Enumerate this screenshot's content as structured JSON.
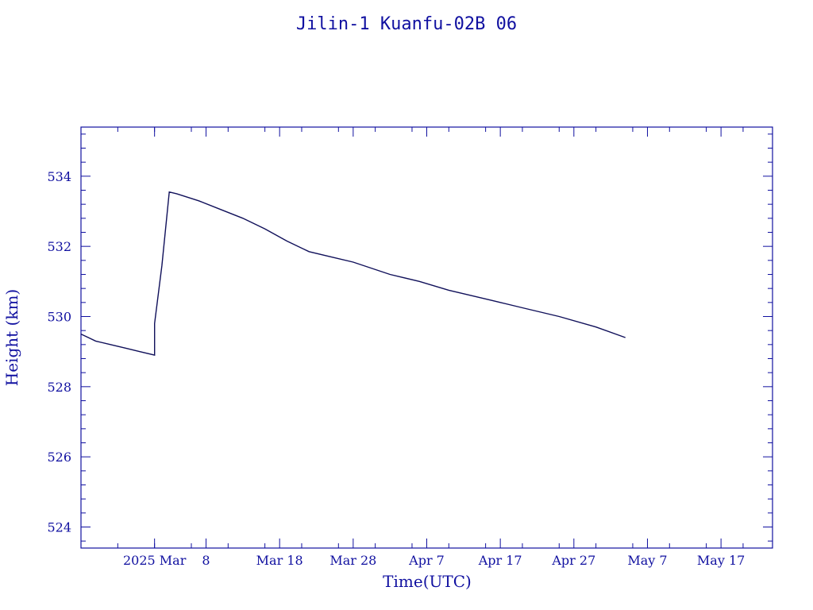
{
  "chart_data": {
    "type": "line",
    "title": "Jilin-1 Kuanfu-02B 06",
    "xlabel": "Time(UTC)",
    "ylabel": "Height (km)",
    "ylim": [
      523.4,
      535.4
    ],
    "xlim": [
      "2025-02-19",
      "2025-05-24"
    ],
    "grid": false,
    "y_ticks": [
      524,
      526,
      528,
      530,
      532,
      534
    ],
    "y_tick_labels": [
      "524",
      "526",
      "528",
      "530",
      "532",
      "534"
    ],
    "x_ticks": [
      "2025-03-01",
      "2025-03-08",
      "2025-03-18",
      "2025-03-28",
      "2025-04-07",
      "2025-04-17",
      "2025-04-27",
      "2025-05-07",
      "2025-05-17"
    ],
    "x_tick_labels": [
      "2025 Mar",
      "8",
      "Mar 18",
      "Mar 28",
      "Apr  7",
      "Apr 17",
      "Apr 27",
      "May  7",
      "May 17"
    ],
    "series": [
      {
        "x": [
          "2025-02-19",
          "2025-02-20",
          "2025-02-21",
          "2025-02-23",
          "2025-02-25",
          "2025-02-27",
          "2025-03-01",
          "2025-03-01",
          "2025-03-02",
          "2025-03-02",
          "2025-03-03",
          "2025-03-04",
          "2025-03-07",
          "2025-03-10",
          "2025-03-13",
          "2025-03-16",
          "2025-03-19",
          "2025-03-22",
          "2025-03-25",
          "2025-03-28",
          "2025-04-02",
          "2025-04-06",
          "2025-04-10",
          "2025-04-14",
          "2025-04-16",
          "2025-04-17",
          "2025-04-20",
          "2025-04-25",
          "2025-04-30",
          "2025-05-04"
        ],
        "y": [
          529.5,
          529.4,
          529.3,
          529.2,
          529.1,
          529.0,
          528.9,
          529.8,
          531.45,
          531.45,
          533.55,
          533.5,
          533.3,
          533.05,
          532.8,
          532.5,
          532.15,
          531.85,
          531.7,
          531.55,
          531.2,
          531.0,
          530.75,
          530.55,
          530.45,
          530.4,
          530.25,
          530.0,
          529.7,
          529.4
        ]
      }
    ]
  }
}
